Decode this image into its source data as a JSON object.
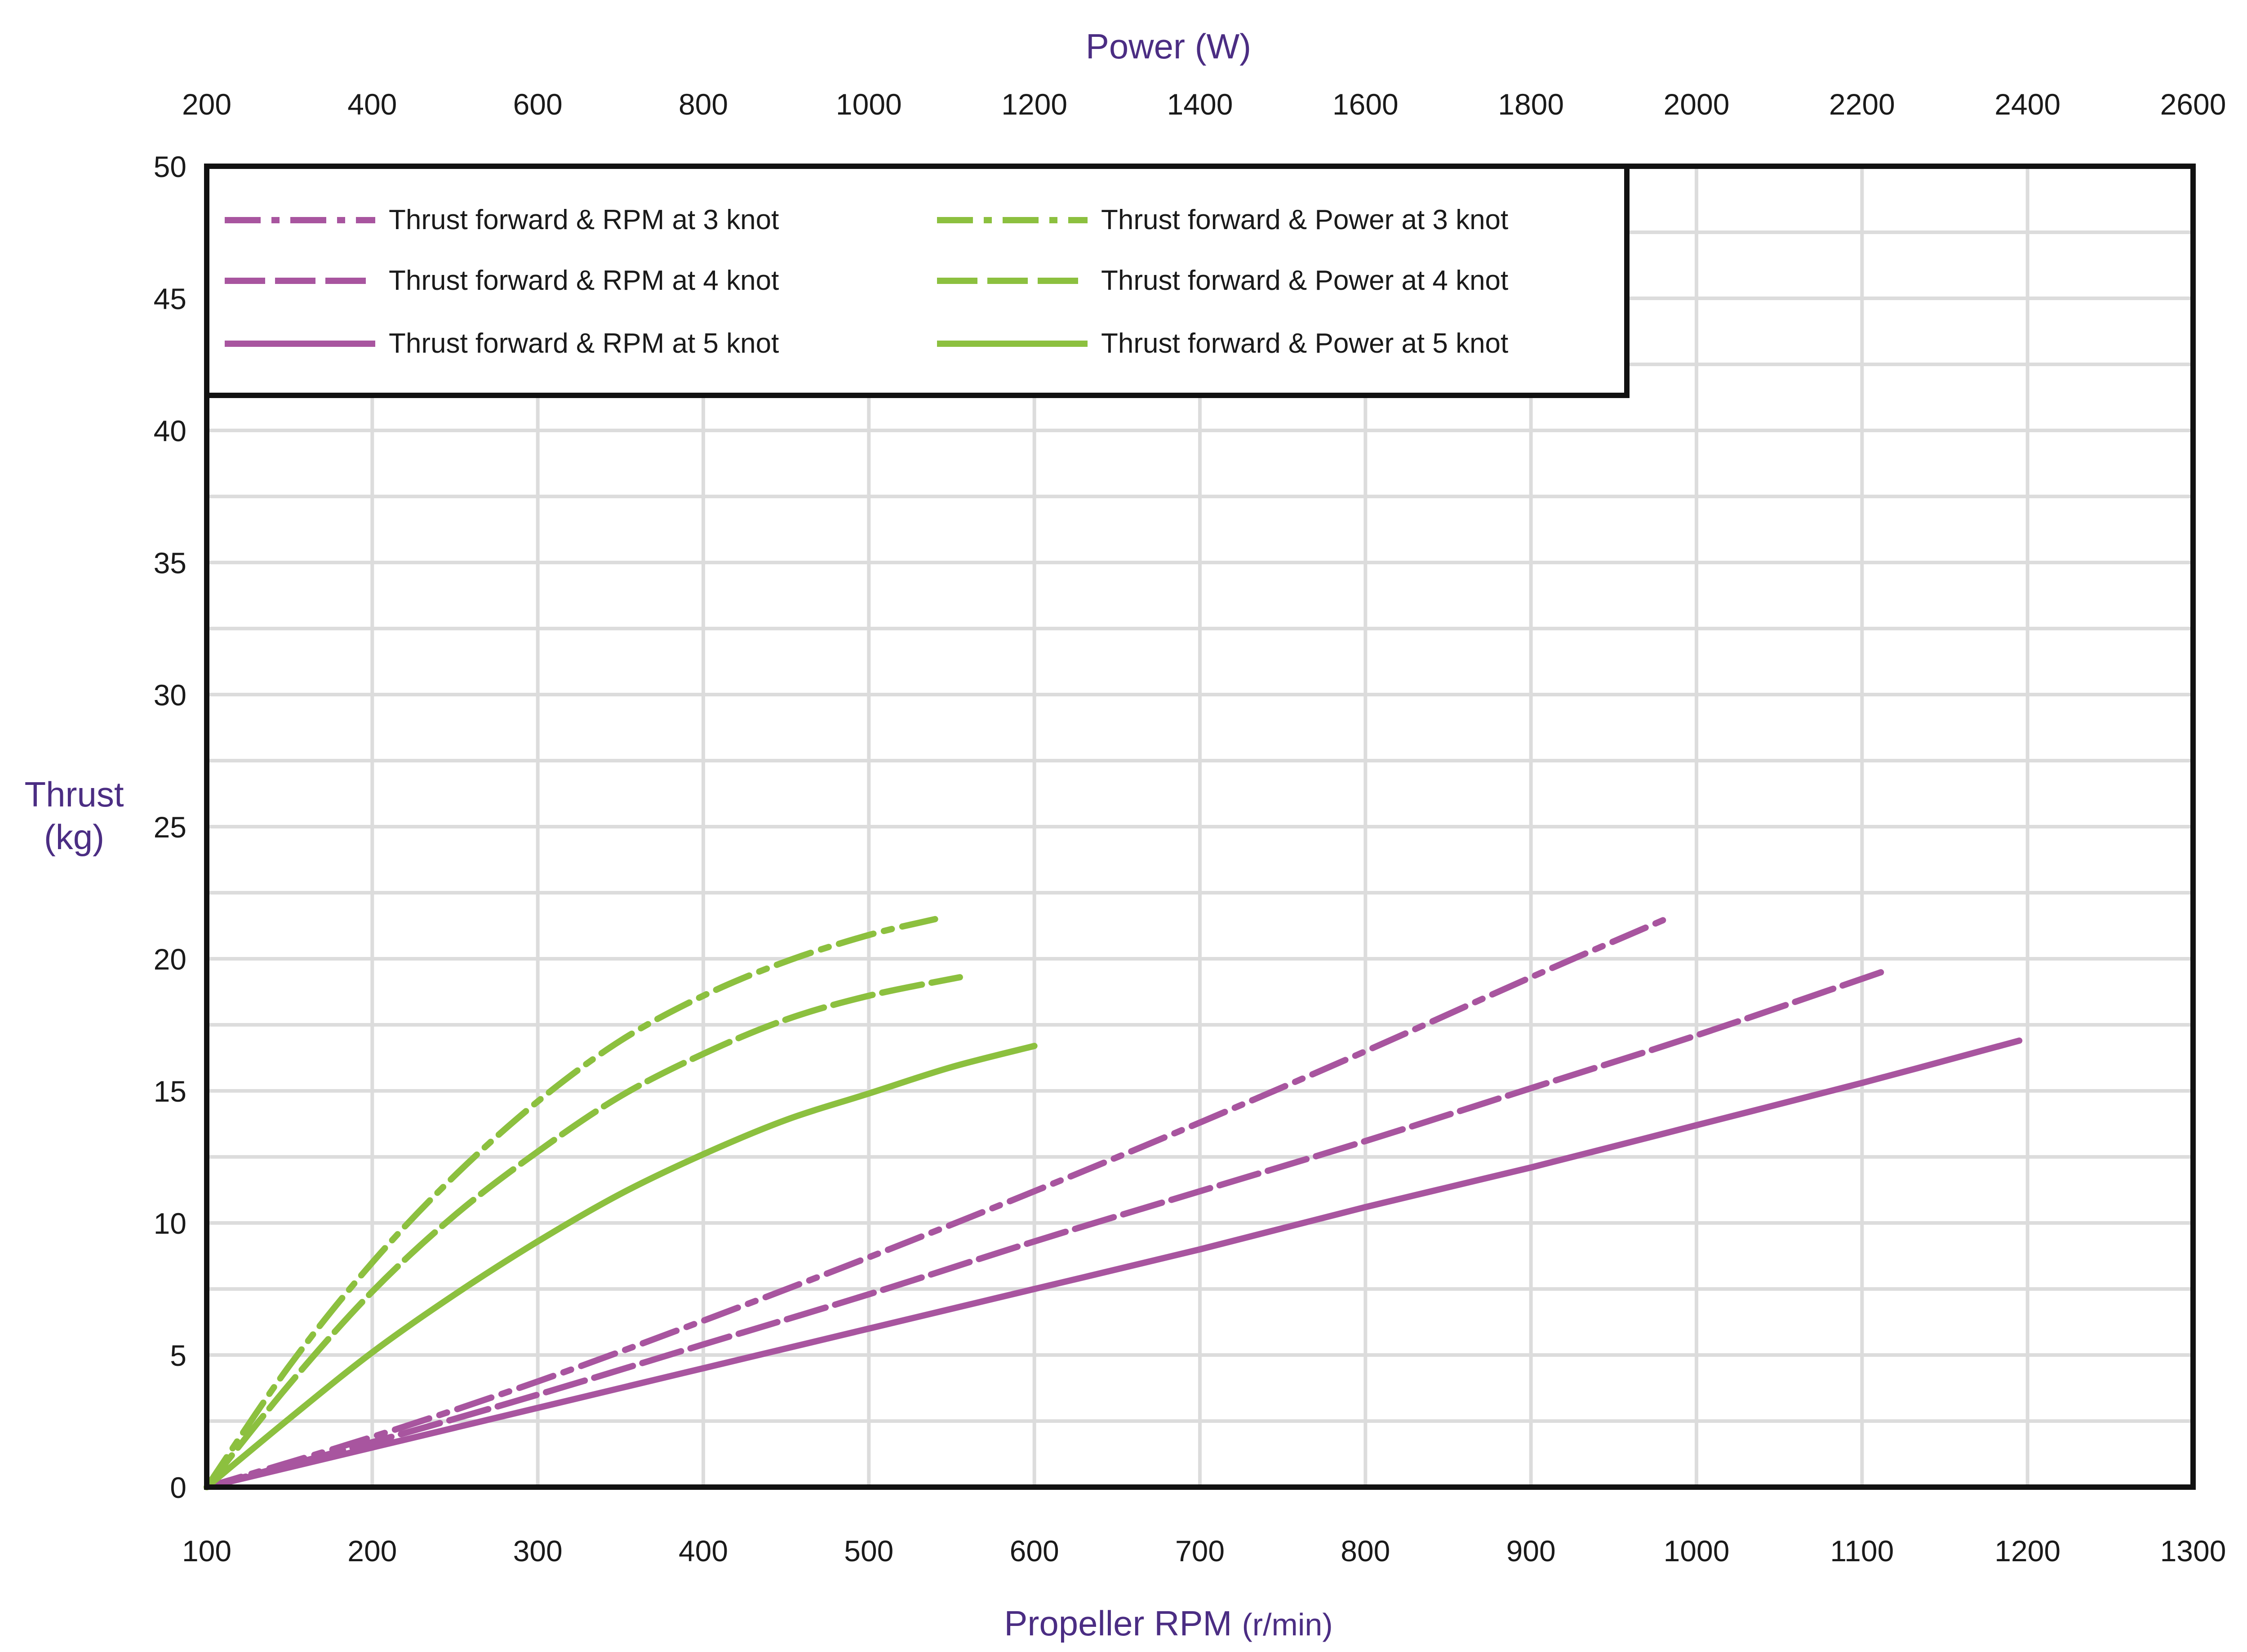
{
  "chart_data": {
    "type": "line",
    "title": "",
    "x_bottom": {
      "label": "Propeller RPM",
      "unit": "(r/min)",
      "range": [
        100,
        1300
      ],
      "ticks": [
        100,
        200,
        300,
        400,
        500,
        600,
        700,
        800,
        900,
        1000,
        1100,
        1200,
        1300
      ]
    },
    "x_top": {
      "label": "Power (W)",
      "range": [
        200,
        2600
      ],
      "ticks": [
        200,
        400,
        600,
        800,
        1000,
        1200,
        1400,
        1600,
        1800,
        2000,
        2200,
        2400,
        2600
      ]
    },
    "y": {
      "label_line1": "Thrust",
      "label_line2": "(kg)",
      "range": [
        0,
        50
      ],
      "ticks": [
        0,
        5,
        10,
        15,
        20,
        25,
        30,
        35,
        40,
        45,
        50
      ]
    },
    "grid": true,
    "legend_position": "top-left",
    "colors": {
      "rpm": "#a8559f",
      "power": "#8cc03f",
      "frame": "#111111"
    },
    "series": [
      {
        "name": "Thrust forward &  RPM at 3 knot",
        "axis": "bottom",
        "color": "#a8559f",
        "dash": "dashdot",
        "x": [
          100,
          200,
          300,
          400,
          500,
          600,
          700,
          800,
          900,
          985
        ],
        "y": [
          0,
          1.9,
          4.0,
          6.3,
          8.7,
          11.2,
          13.8,
          16.5,
          19.3,
          21.6
        ]
      },
      {
        "name": "Thrust forward &  RPM at 4 knot",
        "axis": "bottom",
        "color": "#a8559f",
        "dash": "dash",
        "x": [
          100,
          200,
          300,
          400,
          500,
          600,
          700,
          800,
          900,
          1000,
          1112
        ],
        "y": [
          0,
          1.7,
          3.5,
          5.4,
          7.3,
          9.3,
          11.2,
          13.1,
          15.1,
          17.1,
          19.5
        ]
      },
      {
        "name": "Thrust forward &  RPM at 5 knot",
        "axis": "bottom",
        "color": "#a8559f",
        "dash": "solid",
        "x": [
          100,
          200,
          300,
          400,
          500,
          600,
          700,
          800,
          900,
          1000,
          1100,
          1195
        ],
        "y": [
          0,
          1.5,
          3.0,
          4.5,
          6.0,
          7.5,
          9.0,
          10.6,
          12.1,
          13.7,
          15.3,
          16.9
        ]
      },
      {
        "name": "Thrust forward & Power at 3 knot",
        "axis": "top",
        "color": "#8cc03f",
        "dash": "dashdot",
        "x": [
          200,
          300,
          400,
          500,
          600,
          700,
          800,
          900,
          1000,
          1080
        ],
        "y": [
          0,
          4.6,
          8.5,
          11.8,
          14.6,
          16.9,
          18.6,
          19.9,
          20.9,
          21.5
        ]
      },
      {
        "name": "Thrust forward & Power at 4 knot",
        "axis": "top",
        "color": "#8cc03f",
        "dash": "dash",
        "x": [
          200,
          300,
          400,
          500,
          600,
          700,
          800,
          900,
          1000,
          1110
        ],
        "y": [
          0,
          3.9,
          7.4,
          10.3,
          12.7,
          14.8,
          16.4,
          17.7,
          18.6,
          19.3
        ]
      },
      {
        "name": "Thrust forward & Power at 5 knot",
        "axis": "top",
        "color": "#8cc03f",
        "dash": "solid",
        "x": [
          200,
          300,
          400,
          500,
          600,
          700,
          800,
          900,
          1000,
          1100,
          1200
        ],
        "y": [
          0,
          2.6,
          5.1,
          7.3,
          9.3,
          11.1,
          12.6,
          13.9,
          14.9,
          15.9,
          16.7
        ]
      }
    ]
  }
}
